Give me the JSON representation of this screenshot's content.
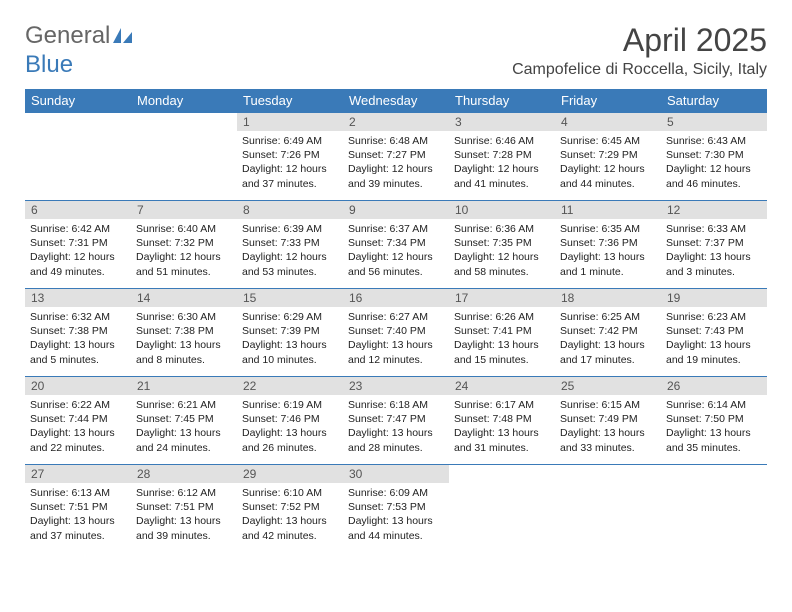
{
  "logo": {
    "word1": "General",
    "word2": "Blue"
  },
  "header": {
    "title": "April 2025",
    "location": "Campofelice di Roccella, Sicily, Italy"
  },
  "colors": {
    "accent": "#3a7ab8",
    "dayBar": "#e1e1e1",
    "text": "#222222",
    "bg": "#ffffff"
  },
  "dayHeaders": [
    "Sunday",
    "Monday",
    "Tuesday",
    "Wednesday",
    "Thursday",
    "Friday",
    "Saturday"
  ],
  "labels": {
    "sunrise": "Sunrise:",
    "sunset": "Sunset:",
    "daylight": "Daylight:"
  },
  "firstDayOffset": 2,
  "days": [
    {
      "n": "1",
      "sr": "6:49 AM",
      "ss": "7:26 PM",
      "dl": "12 hours and 37 minutes."
    },
    {
      "n": "2",
      "sr": "6:48 AM",
      "ss": "7:27 PM",
      "dl": "12 hours and 39 minutes."
    },
    {
      "n": "3",
      "sr": "6:46 AM",
      "ss": "7:28 PM",
      "dl": "12 hours and 41 minutes."
    },
    {
      "n": "4",
      "sr": "6:45 AM",
      "ss": "7:29 PM",
      "dl": "12 hours and 44 minutes."
    },
    {
      "n": "5",
      "sr": "6:43 AM",
      "ss": "7:30 PM",
      "dl": "12 hours and 46 minutes."
    },
    {
      "n": "6",
      "sr": "6:42 AM",
      "ss": "7:31 PM",
      "dl": "12 hours and 49 minutes."
    },
    {
      "n": "7",
      "sr": "6:40 AM",
      "ss": "7:32 PM",
      "dl": "12 hours and 51 minutes."
    },
    {
      "n": "8",
      "sr": "6:39 AM",
      "ss": "7:33 PM",
      "dl": "12 hours and 53 minutes."
    },
    {
      "n": "9",
      "sr": "6:37 AM",
      "ss": "7:34 PM",
      "dl": "12 hours and 56 minutes."
    },
    {
      "n": "10",
      "sr": "6:36 AM",
      "ss": "7:35 PM",
      "dl": "12 hours and 58 minutes."
    },
    {
      "n": "11",
      "sr": "6:35 AM",
      "ss": "7:36 PM",
      "dl": "13 hours and 1 minute."
    },
    {
      "n": "12",
      "sr": "6:33 AM",
      "ss": "7:37 PM",
      "dl": "13 hours and 3 minutes."
    },
    {
      "n": "13",
      "sr": "6:32 AM",
      "ss": "7:38 PM",
      "dl": "13 hours and 5 minutes."
    },
    {
      "n": "14",
      "sr": "6:30 AM",
      "ss": "7:38 PM",
      "dl": "13 hours and 8 minutes."
    },
    {
      "n": "15",
      "sr": "6:29 AM",
      "ss": "7:39 PM",
      "dl": "13 hours and 10 minutes."
    },
    {
      "n": "16",
      "sr": "6:27 AM",
      "ss": "7:40 PM",
      "dl": "13 hours and 12 minutes."
    },
    {
      "n": "17",
      "sr": "6:26 AM",
      "ss": "7:41 PM",
      "dl": "13 hours and 15 minutes."
    },
    {
      "n": "18",
      "sr": "6:25 AM",
      "ss": "7:42 PM",
      "dl": "13 hours and 17 minutes."
    },
    {
      "n": "19",
      "sr": "6:23 AM",
      "ss": "7:43 PM",
      "dl": "13 hours and 19 minutes."
    },
    {
      "n": "20",
      "sr": "6:22 AM",
      "ss": "7:44 PM",
      "dl": "13 hours and 22 minutes."
    },
    {
      "n": "21",
      "sr": "6:21 AM",
      "ss": "7:45 PM",
      "dl": "13 hours and 24 minutes."
    },
    {
      "n": "22",
      "sr": "6:19 AM",
      "ss": "7:46 PM",
      "dl": "13 hours and 26 minutes."
    },
    {
      "n": "23",
      "sr": "6:18 AM",
      "ss": "7:47 PM",
      "dl": "13 hours and 28 minutes."
    },
    {
      "n": "24",
      "sr": "6:17 AM",
      "ss": "7:48 PM",
      "dl": "13 hours and 31 minutes."
    },
    {
      "n": "25",
      "sr": "6:15 AM",
      "ss": "7:49 PM",
      "dl": "13 hours and 33 minutes."
    },
    {
      "n": "26",
      "sr": "6:14 AM",
      "ss": "7:50 PM",
      "dl": "13 hours and 35 minutes."
    },
    {
      "n": "27",
      "sr": "6:13 AM",
      "ss": "7:51 PM",
      "dl": "13 hours and 37 minutes."
    },
    {
      "n": "28",
      "sr": "6:12 AM",
      "ss": "7:51 PM",
      "dl": "13 hours and 39 minutes."
    },
    {
      "n": "29",
      "sr": "6:10 AM",
      "ss": "7:52 PM",
      "dl": "13 hours and 42 minutes."
    },
    {
      "n": "30",
      "sr": "6:09 AM",
      "ss": "7:53 PM",
      "dl": "13 hours and 44 minutes."
    }
  ]
}
